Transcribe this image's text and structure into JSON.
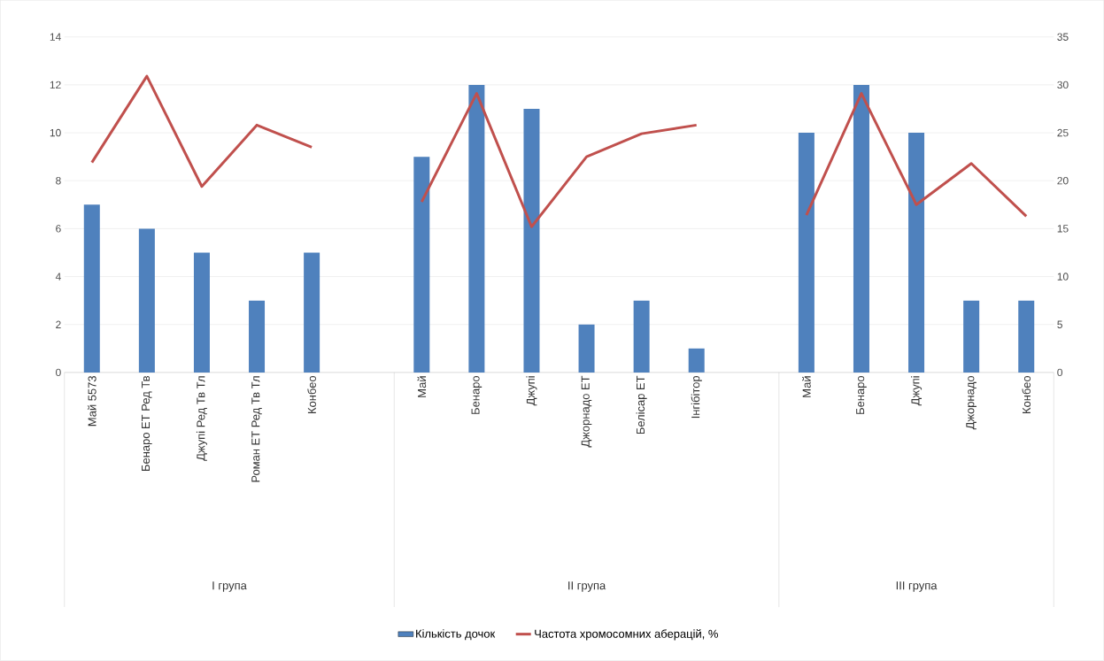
{
  "chart_data": {
    "type": "bar",
    "categories": [
      "Май 5573",
      "Бенаро ЕТ Ред Тв",
      "Джупі Ред Тв Тл",
      "Роман ЕТ Ред Тв Тл",
      "Конбео",
      null,
      "Май",
      "Бенаро",
      "Джупі",
      "Джорнадо ЕТ",
      "Белісар ЕТ",
      "Інгібітор",
      null,
      "Май",
      "Бенаро",
      "Джупі",
      "Джорнадо",
      "Конбео"
    ],
    "series": [
      {
        "name": "Кількість дочок",
        "color": "#4f81bd",
        "values": [
          7,
          6,
          5,
          3,
          5,
          null,
          9,
          12,
          11,
          2,
          3,
          1,
          null,
          10,
          12,
          10,
          3,
          3
        ]
      },
      {
        "name": "Частота хромосомних аберацій, %",
        "type": "line",
        "axis": "y2",
        "color": "#c0504d",
        "values": [
          21.9,
          30.9,
          19.4,
          25.8,
          23.5,
          null,
          17.8,
          29.1,
          15.2,
          22.5,
          24.9,
          25.8,
          null,
          16.4,
          29.1,
          17.5,
          21.8,
          16.3
        ]
      }
    ],
    "annotations": [
      "І група",
      "ІІ група",
      "ІІІ група"
    ],
    "ylim": [
      0,
      14
    ],
    "yticks": [
      0,
      2,
      4,
      6,
      8,
      10,
      12,
      14
    ],
    "y2lim": [
      0,
      35
    ],
    "y2ticks": [
      0,
      5,
      10,
      15,
      20,
      25,
      30,
      35
    ],
    "grid": "y",
    "legend": "bottom",
    "marker": "none",
    "line_style": "solid"
  }
}
